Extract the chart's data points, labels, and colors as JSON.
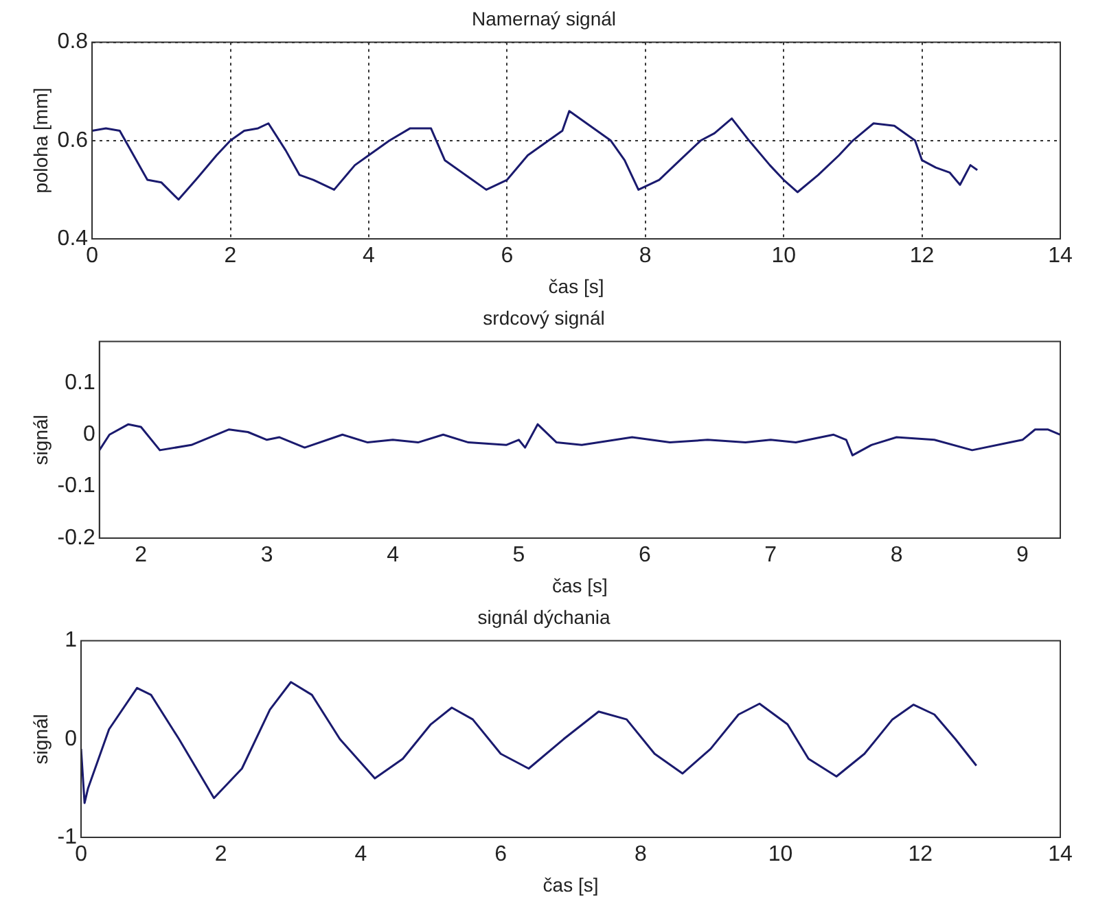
{
  "chart_data": [
    {
      "type": "line",
      "title": "Namernaý signál",
      "xlabel": "čas [s]",
      "ylabel": "poloha [mm]",
      "xlim": [
        0,
        14
      ],
      "xticks": [
        0,
        2,
        4,
        6,
        8,
        10,
        12,
        14
      ],
      "ylim": [
        0.4,
        0.8
      ],
      "yticks": [
        0.4,
        0.6,
        0.8
      ],
      "grid": true,
      "legend": false,
      "line_style": "solid",
      "marker": "none",
      "series": [
        {
          "color": "#1a1a6e",
          "x": [
            0,
            0.2,
            0.4,
            0.6,
            0.8,
            1.0,
            1.25,
            1.5,
            1.8,
            2.0,
            2.2,
            2.4,
            2.55,
            2.8,
            3.0,
            3.2,
            3.5,
            3.8,
            4.0,
            4.3,
            4.6,
            4.9,
            5.1,
            5.4,
            5.7,
            6.0,
            6.3,
            6.6,
            6.8,
            6.9,
            7.2,
            7.5,
            7.7,
            7.9,
            8.2,
            8.5,
            8.8,
            9.0,
            9.25,
            9.5,
            9.8,
            10.0,
            10.2,
            10.5,
            10.8,
            11.0,
            11.3,
            11.6,
            11.9,
            12.0,
            12.2,
            12.4,
            12.55,
            12.7,
            12.8
          ],
          "values": [
            0.62,
            0.625,
            0.62,
            0.57,
            0.52,
            0.515,
            0.48,
            0.52,
            0.57,
            0.6,
            0.62,
            0.625,
            0.635,
            0.58,
            0.53,
            0.52,
            0.5,
            0.55,
            0.57,
            0.6,
            0.625,
            0.625,
            0.56,
            0.53,
            0.5,
            0.52,
            0.57,
            0.6,
            0.62,
            0.66,
            0.63,
            0.6,
            0.56,
            0.5,
            0.52,
            0.56,
            0.6,
            0.615,
            0.645,
            0.6,
            0.55,
            0.52,
            0.495,
            0.53,
            0.57,
            0.6,
            0.635,
            0.63,
            0.6,
            0.56,
            0.545,
            0.535,
            0.51,
            0.55,
            0.54
          ]
        }
      ]
    },
    {
      "type": "line",
      "title": "srdcový signál",
      "xlabel": "čas [s]",
      "ylabel": "signál",
      "xlim": [
        1.67,
        9.3
      ],
      "xticks": [
        2,
        3,
        4,
        5,
        6,
        7,
        8,
        9
      ],
      "ylim": [
        -0.2,
        0.18
      ],
      "yticks": [
        -0.2,
        -0.1,
        0,
        0.1
      ],
      "grid": false,
      "legend": false,
      "line_style": "solid",
      "marker": "none",
      "series": [
        {
          "color": "#1a1a6e",
          "x": [
            1.67,
            1.75,
            1.9,
            2.0,
            2.15,
            2.4,
            2.7,
            2.85,
            3.0,
            3.1,
            3.3,
            3.6,
            3.8,
            4.0,
            4.2,
            4.4,
            4.6,
            4.9,
            5.0,
            5.05,
            5.15,
            5.3,
            5.5,
            5.9,
            6.2,
            6.5,
            6.8,
            7.0,
            7.2,
            7.5,
            7.6,
            7.65,
            7.8,
            8.0,
            8.3,
            8.6,
            8.9,
            9.0,
            9.1,
            9.2,
            9.3
          ],
          "values": [
            -0.03,
            0.0,
            0.02,
            0.015,
            -0.03,
            -0.02,
            0.01,
            0.005,
            -0.01,
            -0.005,
            -0.025,
            0.0,
            -0.015,
            -0.01,
            -0.015,
            0.0,
            -0.015,
            -0.02,
            -0.01,
            -0.025,
            0.02,
            -0.015,
            -0.02,
            -0.005,
            -0.015,
            -0.01,
            -0.015,
            -0.01,
            -0.015,
            0.0,
            -0.01,
            -0.04,
            -0.02,
            -0.005,
            -0.01,
            -0.03,
            -0.015,
            -0.01,
            0.01,
            0.01,
            0.0
          ]
        }
      ]
    },
    {
      "type": "line",
      "title": "signál dýchania",
      "xlabel": "čas [s]",
      "ylabel": "signál",
      "xlim": [
        0,
        14
      ],
      "xticks": [
        0,
        2,
        4,
        6,
        8,
        10,
        12,
        14
      ],
      "ylim": [
        -1,
        1
      ],
      "yticks": [
        -1,
        0,
        1
      ],
      "grid": false,
      "legend": false,
      "line_style": "solid",
      "marker": "none",
      "series": [
        {
          "color": "#1a1a6e",
          "x": [
            0,
            0.05,
            0.1,
            0.4,
            0.8,
            1.0,
            1.4,
            1.9,
            2.3,
            2.7,
            3.0,
            3.3,
            3.7,
            4.2,
            4.6,
            5.0,
            5.3,
            5.6,
            6.0,
            6.4,
            6.9,
            7.4,
            7.8,
            8.2,
            8.6,
            9.0,
            9.4,
            9.7,
            10.1,
            10.4,
            10.8,
            11.2,
            11.6,
            11.9,
            12.2,
            12.5,
            12.8
          ],
          "values": [
            -0.1,
            -0.65,
            -0.5,
            0.1,
            0.52,
            0.45,
            0,
            -0.6,
            -0.3,
            0.3,
            0.58,
            0.45,
            0,
            -0.4,
            -0.2,
            0.15,
            0.32,
            0.2,
            -0.15,
            -0.3,
            0,
            0.28,
            0.2,
            -0.15,
            -0.35,
            -0.1,
            0.25,
            0.36,
            0.15,
            -0.2,
            -0.38,
            -0.15,
            0.2,
            0.35,
            0.25,
            0,
            -0.27
          ]
        }
      ]
    }
  ]
}
